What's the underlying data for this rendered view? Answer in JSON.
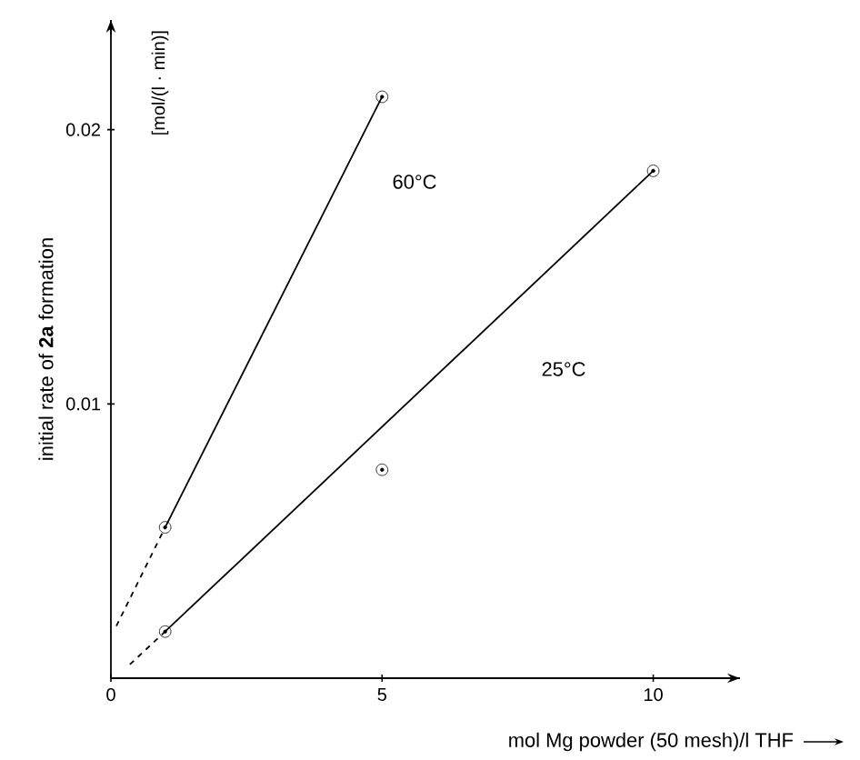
{
  "chart_data": {
    "type": "scatter",
    "xlabel": "mol Mg powder (50 mesh)/l THF",
    "ylabel": "initial rate of **2a** formation",
    "annotations": [
      "[mol/(l · min)]",
      "60°C",
      "25°C"
    ],
    "xlim": [
      0,
      11.6
    ],
    "ylim": [
      0,
      0.024
    ],
    "xticks": [
      0,
      5,
      10
    ],
    "yticks": [
      0.01,
      0.02
    ],
    "grid": false,
    "marker": "circle",
    "series": [
      {
        "color": "#000000",
        "x": [
          1,
          5
        ],
        "values": [
          0.0055,
          0.0212
        ]
      },
      {
        "color": "#000000",
        "x": [
          1,
          5,
          10
        ],
        "values": [
          0.0017,
          0.0076,
          0.0185
        ]
      },
      {
        "type": "line",
        "marker": "none",
        "line_style": "solid",
        "color": "#000000",
        "x": [
          1,
          5
        ],
        "values": [
          0.0055,
          0.0212
        ]
      },
      {
        "type": "line",
        "marker": "none",
        "line_style": "dashed",
        "color": "#000000",
        "x": [
          0.1,
          1
        ],
        "values": [
          0.0019,
          0.0055
        ]
      },
      {
        "type": "line",
        "line_style": "solid",
        "color": "#000000",
        "x": [
          1,
          10
        ],
        "values": [
          0.0017,
          0.0185
        ]
      },
      {
        "type": "line",
        "marker": "none",
        "line_style": "dashed",
        "color": "#000000",
        "x": [
          0.35,
          1
        ],
        "values": [
          0.0005,
          0.0017
        ]
      }
    ]
  }
}
